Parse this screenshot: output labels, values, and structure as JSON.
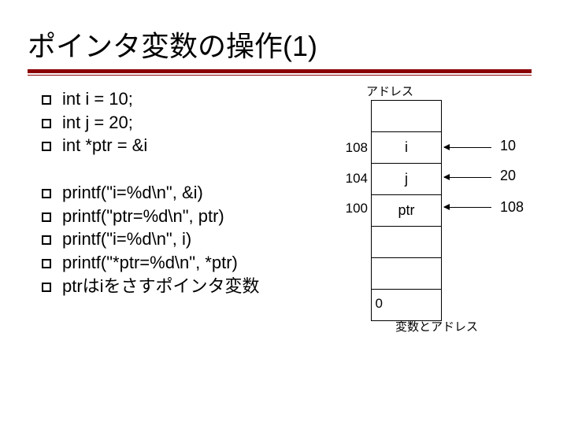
{
  "title": "ポインタ変数の操作(1)",
  "bullets_a": [
    "int i = 10;",
    "int j = 20;",
    "int *ptr = &i"
  ],
  "bullets_b": [
    "printf(\"i=%d\\n\", &i)",
    "printf(\"ptr=%d\\n\", ptr)",
    "printf(\"i=%d\\n\", i)",
    "printf(\"*ptr=%d\\n\", *ptr)",
    "ptrはiをさすポインタ変数"
  ],
  "diagram": {
    "header": "アドレス",
    "addresses": {
      "a108": "108",
      "a104": "104",
      "a100": "100",
      "a0": "0"
    },
    "cells": {
      "c0": "",
      "c1": "i",
      "c2": "j",
      "c3": "ptr",
      "c4": "",
      "c5": "",
      "c6": ""
    },
    "values": {
      "v1": "10",
      "v2": "20",
      "v3": "108"
    },
    "caption": "変数とアドレス"
  },
  "style": {
    "title_fontsize": 36,
    "code_fontsize": 22,
    "underline_color": "#8b0000",
    "background": "#ffffff"
  }
}
